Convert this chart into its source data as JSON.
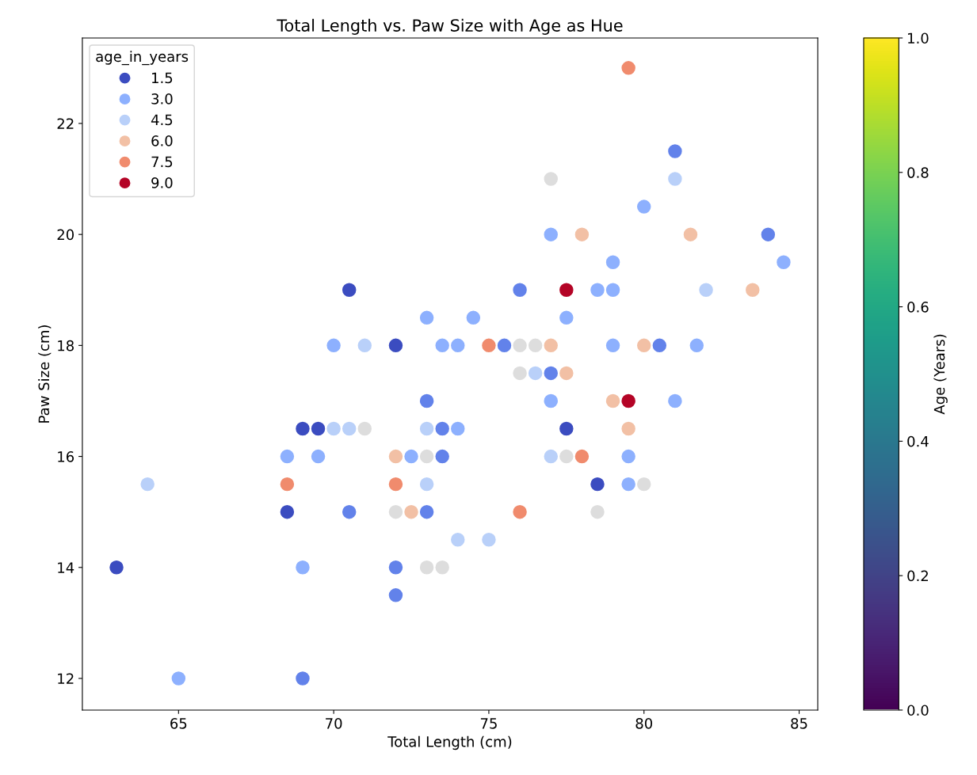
{
  "chart_data": {
    "type": "scatter",
    "title": "Total Length vs. Paw Size with Age as Hue",
    "xlabel": "Total Length (cm)",
    "ylabel": "Paw Size (cm)",
    "clabel": "Age (Years)",
    "legend_title": "age_in_years",
    "legend": "top left",
    "marker": "circle",
    "grid": false,
    "xlim": [
      61.9,
      85.6
    ],
    "ylim": [
      11.43,
      23.54
    ],
    "xticks": [
      65,
      70,
      75,
      80,
      85
    ],
    "yticks": [
      12,
      14,
      16,
      18,
      20,
      22
    ],
    "clim": [
      0,
      1
    ],
    "cticks": [
      {
        "value": 0,
        "label": "0.0"
      },
      {
        "value": 0.2,
        "label": "0.2"
      },
      {
        "value": 0.4,
        "label": "0.4"
      },
      {
        "value": 0.6,
        "label": "0.6"
      },
      {
        "value": 0.8,
        "label": "0.8"
      },
      {
        "value": 1,
        "label": "1.0"
      }
    ],
    "series": [
      {
        "name": "1.5",
        "color": "#3b4cc0",
        "x": [
          70.5,
          72,
          69,
          69.5,
          77.5,
          78.5,
          68.5,
          63
        ],
        "values": [
          19,
          18,
          16.5,
          16.5,
          16.5,
          15.5,
          15,
          14
        ]
      },
      {
        "color": "#6282ea",
        "x": [
          81,
          84,
          76,
          75.5,
          80.5,
          77,
          73,
          73.5,
          73.5,
          70.5,
          73,
          72,
          72,
          69
        ],
        "values": [
          21.5,
          20,
          19,
          18,
          18,
          17.5,
          17,
          16.5,
          16,
          15,
          15,
          14,
          13.5,
          12
        ]
      },
      {
        "name": "3.0",
        "color": "#8db0fe",
        "x": [
          80,
          77,
          79,
          84.5,
          78.5,
          79,
          73,
          74.5,
          77.5,
          70,
          73.5,
          74,
          79,
          81.7,
          77,
          81,
          74,
          68.5,
          69.5,
          72.5,
          79.5,
          79.5,
          69,
          65
        ],
        "values": [
          20.5,
          20,
          19.5,
          19.5,
          19,
          19,
          18.5,
          18.5,
          18.5,
          18,
          18,
          18,
          18,
          18,
          17,
          17,
          16.5,
          16,
          16,
          16,
          16,
          15.5,
          14,
          12
        ]
      },
      {
        "name": "4.5",
        "color": "#b9d0f9",
        "x": [
          81,
          82,
          71,
          76.5,
          70,
          70.5,
          73,
          77,
          64,
          73,
          74,
          75
        ],
        "values": [
          21,
          19,
          18,
          17.5,
          16.5,
          16.5,
          16.5,
          16,
          15.5,
          15.5,
          14.5,
          14.5
        ]
      },
      {
        "color": "#dddddd",
        "x": [
          77,
          76,
          76.5,
          76,
          71,
          73,
          77.5,
          80,
          72,
          78.5,
          73,
          73.5
        ],
        "values": [
          21,
          18,
          18,
          17.5,
          16.5,
          16,
          16,
          15.5,
          15,
          15,
          14,
          14
        ]
      },
      {
        "name": "6.0",
        "color": "#f2c0a5",
        "x": [
          78,
          81.5,
          83.5,
          77,
          80,
          77.5,
          79,
          79.5,
          72,
          72.5
        ],
        "values": [
          20,
          20,
          19,
          18,
          18,
          17.5,
          17,
          16.5,
          16,
          15
        ]
      },
      {
        "name": "7.5",
        "color": "#f08b6d",
        "x": [
          79.5,
          75,
          78,
          68.5,
          72,
          76
        ],
        "values": [
          23,
          18,
          16,
          15.5,
          15.5,
          15
        ]
      },
      {
        "name": "9.0",
        "color": "#b40426",
        "x": [
          77.5,
          79.5
        ],
        "values": [
          19,
          17
        ]
      }
    ]
  }
}
